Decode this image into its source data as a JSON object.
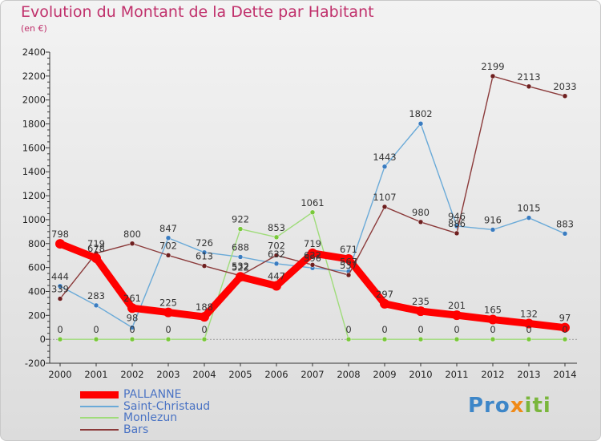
{
  "title": "Evolution du Montant de la Dette par Habitant",
  "subtitle": "(en €)",
  "logo_parts": [
    "Pro",
    "x",
    "iti"
  ],
  "chart_data": {
    "type": "line",
    "ylim": [
      -200,
      2400
    ],
    "yticks": [
      -200,
      0,
      200,
      400,
      600,
      800,
      1000,
      1200,
      1400,
      1600,
      1800,
      2000,
      2200,
      2400
    ],
    "categories": [
      "2000",
      "2001",
      "2002",
      "2003",
      "2004",
      "2005",
      "2006",
      "2007",
      "2008",
      "2009",
      "2010",
      "2011",
      "2012",
      "2013",
      "2014"
    ],
    "grid": false,
    "legend_position": "bottom-left",
    "series": [
      {
        "name": "Saint-Christaud",
        "color": "#6aaad8",
        "marker": "#3a7cc0",
        "values": [
          444,
          283,
          98,
          847,
          726,
          688,
          632,
          596,
          567,
          1443,
          1802,
          946,
          916,
          1015,
          883
        ],
        "labels": [
          "444",
          "283",
          "98",
          "847",
          "726",
          "688",
          "632",
          "596",
          "567",
          "1443",
          "1802",
          "946",
          "916",
          "1015",
          "883"
        ]
      },
      {
        "name": "Monlezun",
        "color": "#9fdc7a",
        "marker": "#79c83a",
        "values": [
          0,
          0,
          0,
          0,
          0,
          922,
          853,
          1061,
          0,
          0,
          0,
          0,
          0,
          0,
          0
        ],
        "labels": [
          "0",
          "0",
          "0",
          "0",
          "0",
          "922",
          "853",
          "1061",
          "0",
          "0",
          "0",
          "0",
          "0",
          "0",
          "0"
        ]
      },
      {
        "name": "Bars",
        "color": "#8b3a3a",
        "marker": "#6e1f1f",
        "values": [
          339,
          719,
          800,
          702,
          613,
          532,
          702,
          622,
          537,
          1107,
          980,
          886,
          2199,
          2113,
          2033
        ],
        "labels": [
          "339",
          "719",
          "800",
          "702",
          "613",
          "532",
          "702",
          "622",
          "537",
          "1107",
          "980",
          "886",
          "2199",
          "2113",
          "2033"
        ]
      },
      {
        "name": "PALLANNE",
        "color": "#ff0000",
        "marker": "#ff0000",
        "values": [
          798,
          678,
          261,
          225,
          188,
          522,
          447,
          719,
          671,
          297,
          235,
          201,
          165,
          132,
          97
        ],
        "labels": [
          "798",
          "678",
          "261",
          "225",
          "188",
          "522",
          "447",
          "719",
          "671",
          "297",
          "235",
          "201",
          "165",
          "132",
          "97"
        ]
      }
    ]
  }
}
